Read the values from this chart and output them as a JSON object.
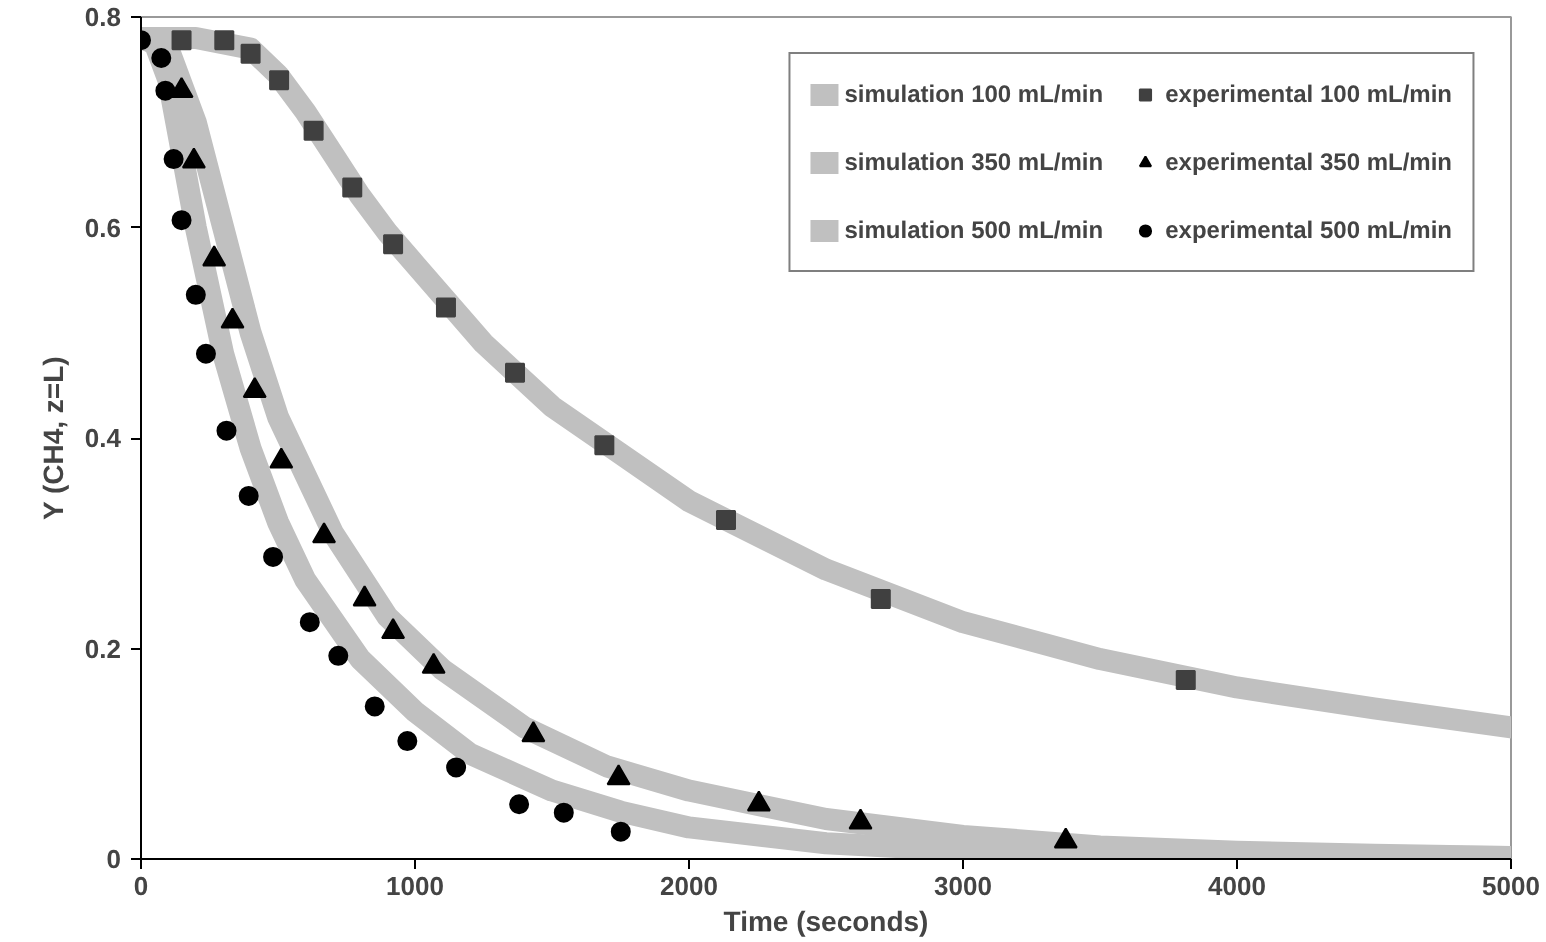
{
  "chart_data": {
    "type": "scatter",
    "xlabel": "Time (seconds)",
    "ylabel": "Y (CH4, z=L)",
    "xlim": [
      0,
      5000
    ],
    "ylim": [
      0,
      0.8
    ],
    "xticks": [
      0,
      1000,
      2000,
      3000,
      4000,
      5000
    ],
    "yticks": [
      0,
      0.2,
      0.4,
      0.6,
      0.8
    ],
    "grid": false,
    "legend": "top right",
    "series": [
      {
        "name": "simulation 100 mL/min",
        "type": "line",
        "color": "#c0c0c0",
        "x": [
          0,
          200,
          400,
          500,
          600,
          700,
          800,
          900,
          1000,
          1250,
          1500,
          1750,
          2000,
          2500,
          3000,
          3500,
          4000,
          4500,
          5000
        ],
        "values": [
          0.78,
          0.78,
          0.77,
          0.745,
          0.71,
          0.67,
          0.63,
          0.595,
          0.565,
          0.49,
          0.43,
          0.385,
          0.34,
          0.275,
          0.225,
          0.19,
          0.163,
          0.143,
          0.125
        ]
      },
      {
        "name": "experimental 100 mL/min",
        "marker": "square",
        "color": "#404040",
        "x": [
          148,
          304,
          400,
          504,
          630,
          771,
          920,
          1113,
          1365,
          1691,
          2135,
          2700,
          3813
        ],
        "values": [
          0.778,
          0.778,
          0.765,
          0.74,
          0.692,
          0.638,
          0.584,
          0.524,
          0.462,
          0.393,
          0.322,
          0.247,
          0.17
        ]
      },
      {
        "name": "simulation 350 mL/min",
        "type": "line",
        "color": "#c0c0c0",
        "x": [
          0,
          100,
          200,
          300,
          400,
          500,
          700,
          900,
          1100,
          1400,
          1700,
          2000,
          2500,
          3000,
          3500,
          4000,
          4500,
          5000
        ],
        "values": [
          0.78,
          0.77,
          0.7,
          0.6,
          0.5,
          0.42,
          0.31,
          0.23,
          0.18,
          0.125,
          0.088,
          0.065,
          0.038,
          0.022,
          0.012,
          0.007,
          0.004,
          0.002
        ]
      },
      {
        "name": "experimental 350 mL/min",
        "marker": "triangle",
        "color": "#000000",
        "x": [
          148,
          193,
          267,
          334,
          415,
          512,
          668,
          816,
          920,
          1068,
          1432,
          1743,
          2255,
          2626,
          3375
        ],
        "values": [
          0.73,
          0.663,
          0.57,
          0.511,
          0.445,
          0.378,
          0.307,
          0.247,
          0.216,
          0.183,
          0.118,
          0.077,
          0.052,
          0.035,
          0.017
        ]
      },
      {
        "name": "simulation 500 mL/min",
        "type": "line",
        "color": "#c0c0c0",
        "x": [
          0,
          50,
          100,
          150,
          200,
          300,
          400,
          500,
          600,
          800,
          1000,
          1200,
          1500,
          1750,
          2000,
          2500,
          3000,
          4000,
          5000
        ],
        "values": [
          0.78,
          0.775,
          0.74,
          0.67,
          0.6,
          0.48,
          0.39,
          0.32,
          0.265,
          0.19,
          0.14,
          0.1,
          0.065,
          0.045,
          0.03,
          0.015,
          0.008,
          0.003,
          0.002
        ]
      },
      {
        "name": "experimental 500 mL/min",
        "marker": "circle",
        "color": "#000000",
        "x": [
          0,
          74,
          89,
          119,
          148,
          200,
          237,
          312,
          393,
          482,
          616,
          720,
          853,
          972,
          1150,
          1380,
          1543,
          1751
        ],
        "values": [
          0.778,
          0.761,
          0.73,
          0.665,
          0.607,
          0.536,
          0.48,
          0.407,
          0.345,
          0.287,
          0.225,
          0.193,
          0.145,
          0.112,
          0.087,
          0.052,
          0.044,
          0.026
        ]
      }
    ]
  }
}
